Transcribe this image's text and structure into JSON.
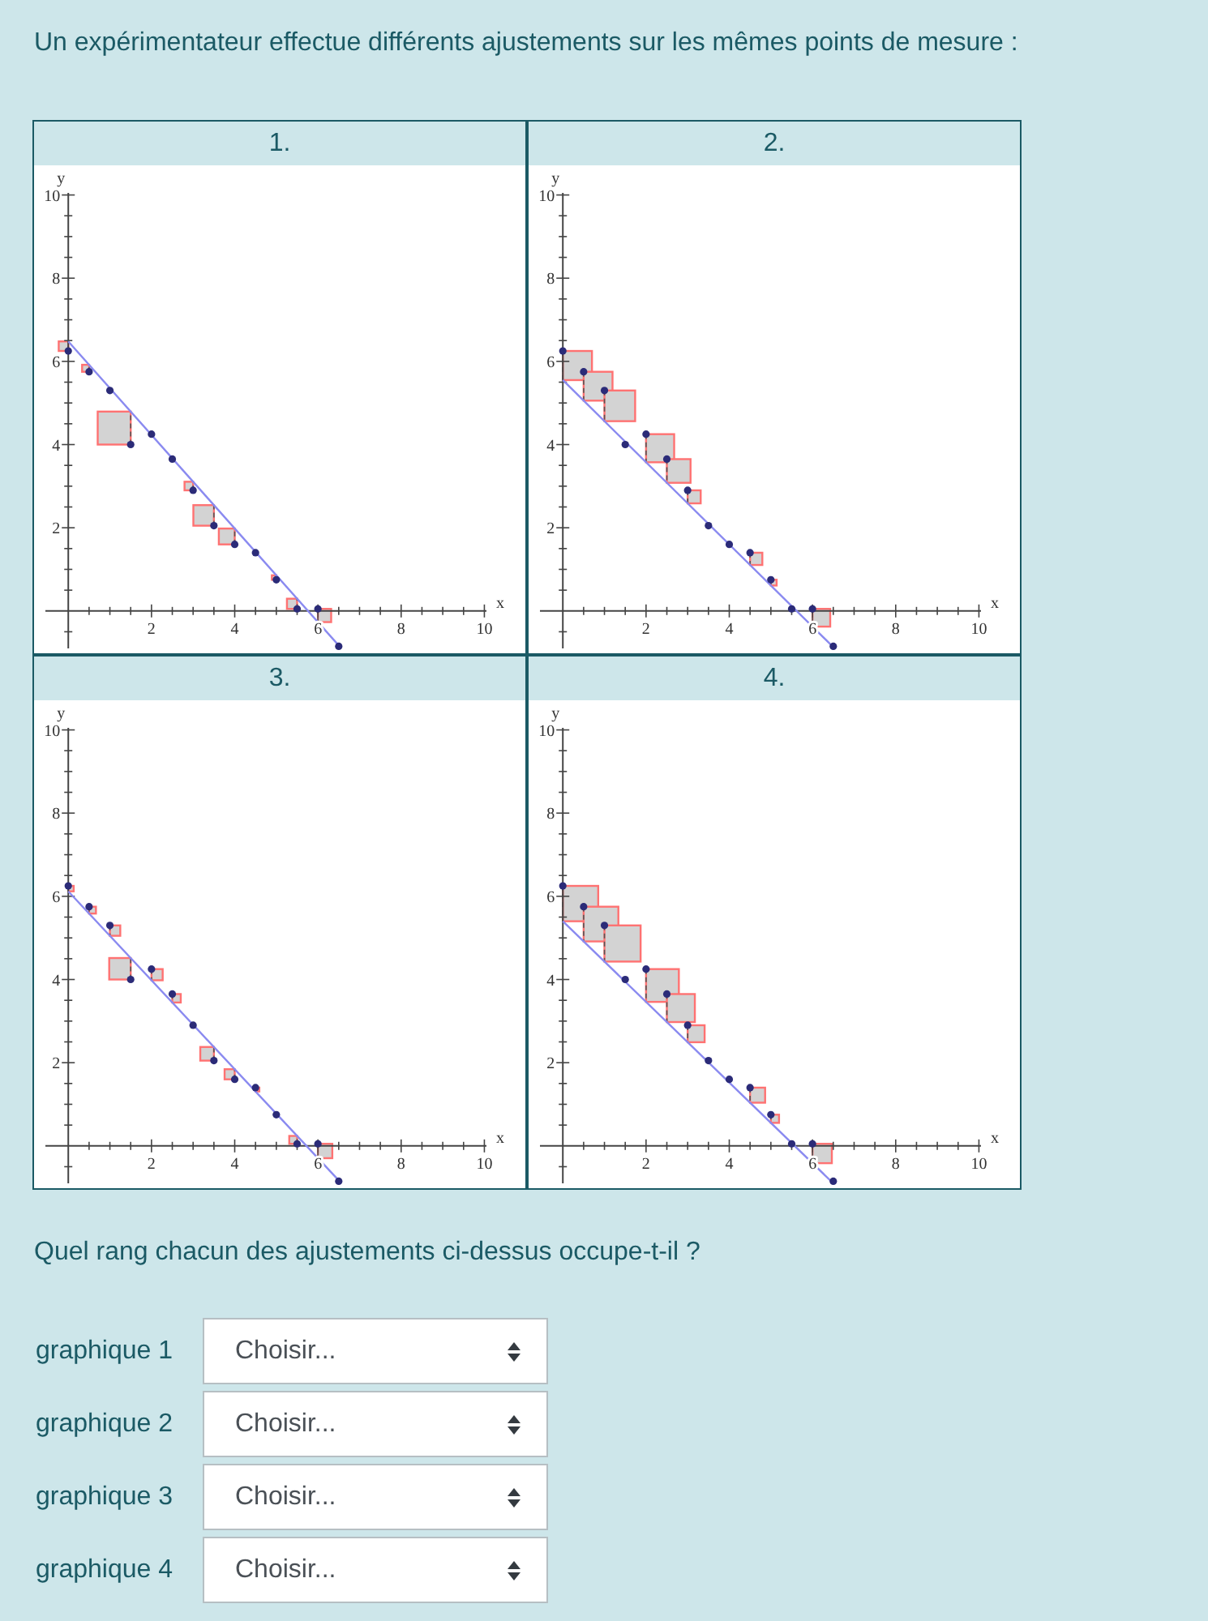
{
  "chart_data": [
    {
      "type": "other",
      "title": "Un expérimentateur effectue différents ajustements sur les mêmes points de mesure :"
    },
    {
      "type": "scatter",
      "title": "1.",
      "xlabel": "x",
      "ylabel": "y",
      "xlim": [
        -0.55,
        10.05
      ],
      "ylim": [
        -0.9,
        10.05
      ],
      "xticks": [
        {
          "value": 0.5,
          "label": null
        },
        {
          "value": 1,
          "label": null
        },
        {
          "value": 1.5,
          "label": null
        },
        2,
        {
          "value": 2.5,
          "label": null
        },
        {
          "value": 3,
          "label": null
        },
        {
          "value": 3.5,
          "label": null
        },
        4,
        {
          "value": 4.5,
          "label": null
        },
        {
          "value": 5,
          "label": null
        },
        {
          "value": 5.5,
          "label": null
        },
        6,
        {
          "value": 6.5,
          "label": null
        },
        {
          "value": 7,
          "label": null
        },
        {
          "value": 7.5,
          "label": null
        },
        8,
        {
          "value": 8.5,
          "label": null
        },
        {
          "value": 9,
          "label": null
        },
        {
          "value": 9.5,
          "label": null
        },
        10
      ],
      "yticks": [
        {
          "value": -0.5,
          "label": null
        },
        {
          "value": 0.5,
          "label": null
        },
        {
          "value": 1,
          "label": null
        },
        {
          "value": 1.5,
          "label": null
        },
        2,
        {
          "value": 2.5,
          "label": null
        },
        {
          "value": 3,
          "label": null
        },
        {
          "value": 3.5,
          "label": null
        },
        4,
        {
          "value": 4.5,
          "label": null
        },
        {
          "value": 5,
          "label": null
        },
        {
          "value": 5.5,
          "label": null
        },
        6,
        {
          "value": 6.5,
          "label": null
        },
        {
          "value": 7,
          "label": null
        },
        {
          "value": 7.5,
          "label": null
        },
        8,
        {
          "value": 8.5,
          "label": null
        },
        {
          "value": 9,
          "label": null
        },
        {
          "value": 9.5,
          "label": null
        },
        10
      ],
      "series": [
        {
          "type": "scatter",
          "marker": "circle",
          "color": "#2b2b78",
          "x": [
            0,
            0.5,
            1,
            1.5,
            2,
            2.5,
            3,
            3.5,
            4,
            4.5,
            5,
            5.5,
            6,
            6.5
          ],
          "values": [
            6.25,
            5.75,
            5.3,
            4.0,
            4.25,
            3.65,
            2.9,
            2.05,
            1.6,
            1.4,
            0.75,
            0.05,
            0.05,
            -0.85
          ]
        },
        {
          "type": "line",
          "marker": "none",
          "color": "#8a8af0",
          "x": [
            0,
            6.5
          ],
          "values": [
            6.48,
            -0.83
          ]
        }
      ]
    },
    {
      "type": "scatter",
      "title": "2.",
      "xlabel": "x",
      "ylabel": "y",
      "xlim": [
        -0.55,
        10.05
      ],
      "ylim": [
        -0.9,
        10.05
      ],
      "xticks": [
        {
          "value": 0.5,
          "label": null
        },
        {
          "value": 1,
          "label": null
        },
        {
          "value": 1.5,
          "label": null
        },
        2,
        {
          "value": 2.5,
          "label": null
        },
        {
          "value": 3,
          "label": null
        },
        {
          "value": 3.5,
          "label": null
        },
        4,
        {
          "value": 4.5,
          "label": null
        },
        {
          "value": 5,
          "label": null
        },
        {
          "value": 5.5,
          "label": null
        },
        6,
        {
          "value": 6.5,
          "label": null
        },
        {
          "value": 7,
          "label": null
        },
        {
          "value": 7.5,
          "label": null
        },
        8,
        {
          "value": 8.5,
          "label": null
        },
        {
          "value": 9,
          "label": null
        },
        {
          "value": 9.5,
          "label": null
        },
        10
      ],
      "yticks": [
        {
          "value": -0.5,
          "label": null
        },
        {
          "value": 0.5,
          "label": null
        },
        {
          "value": 1,
          "label": null
        },
        {
          "value": 1.5,
          "label": null
        },
        2,
        {
          "value": 2.5,
          "label": null
        },
        {
          "value": 3,
          "label": null
        },
        {
          "value": 3.5,
          "label": null
        },
        4,
        {
          "value": 4.5,
          "label": null
        },
        {
          "value": 5,
          "label": null
        },
        {
          "value": 5.5,
          "label": null
        },
        6,
        {
          "value": 6.5,
          "label": null
        },
        {
          "value": 7,
          "label": null
        },
        {
          "value": 7.5,
          "label": null
        },
        8,
        {
          "value": 8.5,
          "label": null
        },
        {
          "value": 9,
          "label": null
        },
        {
          "value": 9.5,
          "label": null
        },
        10
      ],
      "series": [
        {
          "type": "scatter",
          "marker": "circle",
          "color": "#2b2b78",
          "x": [
            0,
            0.5,
            1,
            1.5,
            2,
            2.5,
            3,
            3.5,
            4,
            4.5,
            5,
            5.5,
            6,
            6.5
          ],
          "values": [
            6.25,
            5.75,
            5.3,
            4.0,
            4.25,
            3.65,
            2.9,
            2.05,
            1.6,
            1.4,
            0.75,
            0.05,
            0.05,
            -0.85
          ]
        },
        {
          "type": "line",
          "marker": "none",
          "color": "#8a8af0",
          "x": [
            0,
            6.5
          ],
          "values": [
            5.55,
            -0.87
          ]
        }
      ]
    },
    {
      "type": "scatter",
      "title": "3.",
      "xlabel": "x",
      "ylabel": "y",
      "xlim": [
        -0.55,
        10.05
      ],
      "ylim": [
        -0.9,
        10.05
      ],
      "xticks": [
        {
          "value": 0.5,
          "label": null
        },
        {
          "value": 1,
          "label": null
        },
        {
          "value": 1.5,
          "label": null
        },
        2,
        {
          "value": 2.5,
          "label": null
        },
        {
          "value": 3,
          "label": null
        },
        {
          "value": 3.5,
          "label": null
        },
        4,
        {
          "value": 4.5,
          "label": null
        },
        {
          "value": 5,
          "label": null
        },
        {
          "value": 5.5,
          "label": null
        },
        6,
        {
          "value": 6.5,
          "label": null
        },
        {
          "value": 7,
          "label": null
        },
        {
          "value": 7.5,
          "label": null
        },
        8,
        {
          "value": 8.5,
          "label": null
        },
        {
          "value": 9,
          "label": null
        },
        {
          "value": 9.5,
          "label": null
        },
        10
      ],
      "yticks": [
        {
          "value": -0.5,
          "label": null
        },
        {
          "value": 0.5,
          "label": null
        },
        {
          "value": 1,
          "label": null
        },
        {
          "value": 1.5,
          "label": null
        },
        2,
        {
          "value": 2.5,
          "label": null
        },
        {
          "value": 3,
          "label": null
        },
        {
          "value": 3.5,
          "label": null
        },
        4,
        {
          "value": 4.5,
          "label": null
        },
        {
          "value": 5,
          "label": null
        },
        {
          "value": 5.5,
          "label": null
        },
        6,
        {
          "value": 6.5,
          "label": null
        },
        {
          "value": 7,
          "label": null
        },
        {
          "value": 7.5,
          "label": null
        },
        8,
        {
          "value": 8.5,
          "label": null
        },
        {
          "value": 9,
          "label": null
        },
        {
          "value": 9.5,
          "label": null
        },
        10
      ],
      "series": [
        {
          "type": "scatter",
          "marker": "circle",
          "color": "#2b2b78",
          "x": [
            0,
            0.5,
            1,
            1.5,
            2,
            2.5,
            3,
            3.5,
            4,
            4.5,
            5,
            5.5,
            6,
            6.5
          ],
          "values": [
            6.25,
            5.75,
            5.3,
            4.0,
            4.25,
            3.65,
            2.9,
            2.05,
            1.6,
            1.4,
            0.75,
            0.05,
            0.05,
            -0.85
          ]
        },
        {
          "type": "line",
          "marker": "none",
          "color": "#8a8af0",
          "x": [
            0,
            6.5
          ],
          "values": [
            6.12,
            -0.83
          ]
        }
      ]
    },
    {
      "type": "scatter",
      "title": "4.",
      "xlabel": "x",
      "ylabel": "y",
      "xlim": [
        -0.55,
        10.05
      ],
      "ylim": [
        -0.9,
        10.05
      ],
      "xticks": [
        {
          "value": 0.5,
          "label": null
        },
        {
          "value": 1,
          "label": null
        },
        {
          "value": 1.5,
          "label": null
        },
        2,
        {
          "value": 2.5,
          "label": null
        },
        {
          "value": 3,
          "label": null
        },
        {
          "value": 3.5,
          "label": null
        },
        4,
        {
          "value": 4.5,
          "label": null
        },
        {
          "value": 5,
          "label": null
        },
        {
          "value": 5.5,
          "label": null
        },
        6,
        {
          "value": 6.5,
          "label": null
        },
        {
          "value": 7,
          "label": null
        },
        {
          "value": 7.5,
          "label": null
        },
        8,
        {
          "value": 8.5,
          "label": null
        },
        {
          "value": 9,
          "label": null
        },
        {
          "value": 9.5,
          "label": null
        },
        10
      ],
      "yticks": [
        {
          "value": -0.5,
          "label": null
        },
        {
          "value": 0.5,
          "label": null
        },
        {
          "value": 1,
          "label": null
        },
        {
          "value": 1.5,
          "label": null
        },
        2,
        {
          "value": 2.5,
          "label": null
        },
        {
          "value": 3,
          "label": null
        },
        {
          "value": 3.5,
          "label": null
        },
        4,
        {
          "value": 4.5,
          "label": null
        },
        {
          "value": 5,
          "label": null
        },
        {
          "value": 5.5,
          "label": null
        },
        6,
        {
          "value": 6.5,
          "label": null
        },
        {
          "value": 7,
          "label": null
        },
        {
          "value": 7.5,
          "label": null
        },
        8,
        {
          "value": 8.5,
          "label": null
        },
        {
          "value": 9,
          "label": null
        },
        {
          "value": 9.5,
          "label": null
        },
        10
      ],
      "series": [
        {
          "type": "scatter",
          "marker": "circle",
          "color": "#2b2b78",
          "x": [
            0,
            0.5,
            1,
            1.5,
            2,
            2.5,
            3,
            3.5,
            4,
            4.5,
            5,
            5.5,
            6,
            6.5
          ],
          "values": [
            6.25,
            5.75,
            5.3,
            4.0,
            4.25,
            3.65,
            2.9,
            2.05,
            1.6,
            1.4,
            0.75,
            0.05,
            0.05,
            -0.85
          ]
        },
        {
          "type": "line",
          "marker": "none",
          "color": "#8a8af0",
          "x": [
            0,
            6.5
          ],
          "values": [
            5.4,
            -0.9
          ]
        }
      ]
    },
    {
      "type": "other",
      "title": "Quel rang chacun des ajustements ci-dessus occupe-t-il ?",
      "annotations": [
        "graphique 1",
        "Choisir...",
        "graphique 2",
        "Choisir...",
        "graphique 3",
        "Choisir...",
        "graphique 4",
        "Choisir..."
      ]
    }
  ]
}
